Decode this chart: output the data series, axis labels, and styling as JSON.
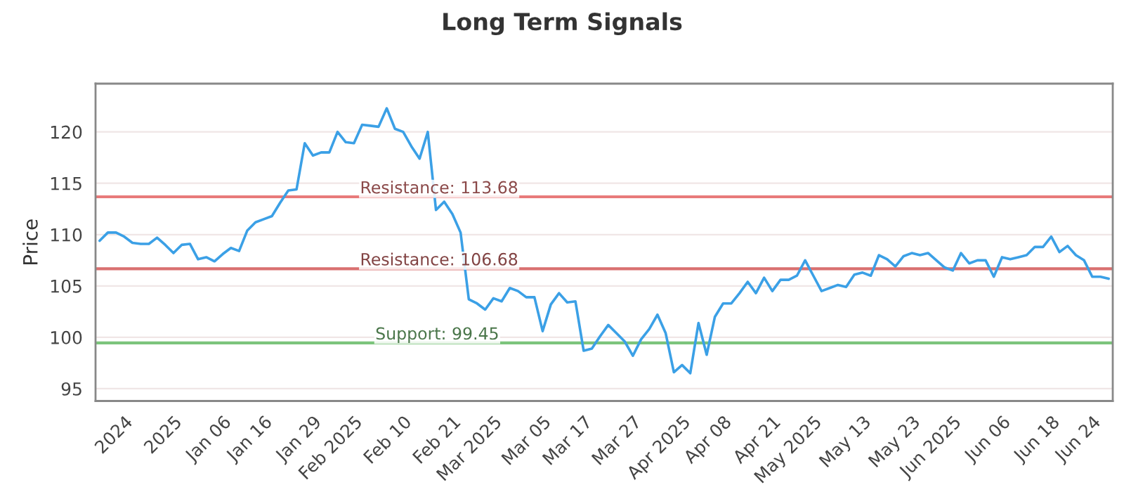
{
  "chart_data": {
    "type": "line",
    "title": "Long Term Signals",
    "ylabel": "Price",
    "categories": [
      null,
      null,
      null,
      "2024",
      null,
      null,
      null,
      null,
      null,
      "2025",
      null,
      null,
      null,
      null,
      null,
      "Jan 06",
      null,
      null,
      null,
      null,
      "Jan 16",
      null,
      null,
      null,
      null,
      null,
      "Jan 29",
      null,
      null,
      null,
      null,
      "Feb 2025",
      null,
      null,
      null,
      null,
      null,
      "Feb 10",
      null,
      null,
      null,
      null,
      null,
      "Feb 21",
      null,
      null,
      null,
      null,
      "Mar 2025",
      null,
      null,
      null,
      null,
      null,
      "Mar 05",
      null,
      null,
      null,
      null,
      "Mar 17",
      null,
      null,
      null,
      null,
      null,
      "Mar 27",
      null,
      null,
      null,
      null,
      null,
      "Apr 2025",
      null,
      null,
      null,
      null,
      "Apr 08",
      null,
      null,
      null,
      null,
      null,
      "Apr 21",
      null,
      null,
      null,
      null,
      "May 2025",
      null,
      null,
      null,
      null,
      null,
      "May 13",
      null,
      null,
      null,
      null,
      null,
      "May 23",
      null,
      null,
      null,
      null,
      "Jun 2025",
      null,
      null,
      null,
      null,
      null,
      "Jun 06",
      null,
      null,
      null,
      null,
      null,
      "Jun 18",
      null,
      null,
      null,
      null,
      "Jun 24",
      null,
      null
    ],
    "series": [
      {
        "color": "#3ba0e6",
        "values": [
          109.4,
          110.2,
          110.2,
          109.8,
          109.2,
          109.1,
          109.1,
          109.7,
          109.0,
          108.2,
          109.0,
          109.1,
          107.6,
          107.8,
          107.4,
          108.1,
          108.7,
          108.4,
          110.4,
          111.2,
          111.5,
          111.8,
          113.1,
          114.3,
          114.4,
          118.9,
          117.7,
          118.0,
          118.0,
          120.0,
          119.0,
          118.9,
          120.7,
          120.6,
          120.5,
          122.3,
          120.3,
          120.0,
          118.6,
          117.4,
          120.0,
          112.4,
          113.2,
          112.0,
          110.2,
          103.7,
          103.3,
          102.7,
          103.8,
          103.5,
          104.8,
          104.5,
          103.9,
          103.9,
          100.6,
          103.2,
          104.3,
          103.4,
          103.5,
          98.7,
          98.9,
          100.1,
          101.2,
          100.4,
          99.6,
          98.2,
          99.8,
          100.8,
          102.2,
          100.4,
          96.6,
          97.3,
          96.5,
          101.4,
          98.3,
          102.0,
          103.3,
          103.3,
          104.3,
          105.4,
          104.3,
          105.8,
          104.5,
          105.6,
          105.6,
          106.0,
          107.5,
          106.0,
          104.5,
          104.8,
          105.1,
          104.9,
          106.1,
          106.3,
          106.0,
          108.0,
          107.6,
          106.9,
          107.9,
          108.2,
          108.0,
          108.2,
          107.5,
          106.8,
          106.5,
          108.2,
          107.2,
          107.5,
          107.5,
          105.9,
          107.8,
          107.6,
          107.8,
          108.0,
          108.8,
          108.8,
          109.8,
          108.3,
          108.9,
          108.0,
          107.5,
          105.9,
          105.9,
          105.7
        ]
      }
    ],
    "ylim": [
      93.8,
      124.7
    ],
    "yticks": [
      95,
      100,
      105,
      110,
      115,
      120
    ],
    "grid": "y",
    "legend": false,
    "ref_lines": [
      {
        "axis": "y",
        "value": 113.68,
        "label": "Resistance: 113.68",
        "color": "#e87a7a"
      },
      {
        "axis": "y",
        "value": 106.68,
        "label": "Resistance: 106.68",
        "color": "#d97070"
      },
      {
        "axis": "y",
        "value": 99.45,
        "label": "Support: 99.45",
        "color": "#7cc47c"
      }
    ]
  }
}
